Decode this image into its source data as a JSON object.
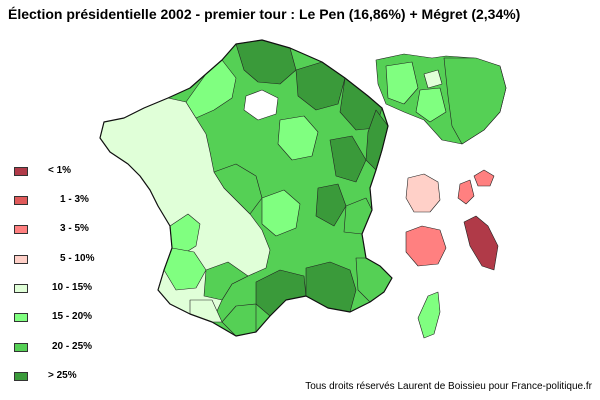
{
  "title": "Élection présidentielle 2002 - premier tour : Le Pen (16,86%) + Mégret (2,34%)",
  "credit": "Tous droits réservés Laurent de Boissieu pour France-politique.fr",
  "legend": [
    {
      "label": "< 1%",
      "color": "#b03a48"
    },
    {
      "label": "1 - 3%",
      "color": "#e05a5a"
    },
    {
      "label": "3 - 5%",
      "color": "#ff8080"
    },
    {
      "label": "5 - 10%",
      "color": "#ffd0c8"
    },
    {
      "label": "10 - 15%",
      "color": "#e0ffd8"
    },
    {
      "label": "15 - 20%",
      "color": "#80ff80"
    },
    {
      "label": "20 - 25%",
      "color": "#55d055"
    },
    {
      "label": "> 25%",
      "color": "#3a9a3a"
    }
  ],
  "colors": {
    "c10": "#e0ffd8",
    "c15": "#80ff80",
    "c20": "#55d055",
    "c25": "#3a9a3a",
    "c5": "#ffd0c8",
    "c3": "#ff8080",
    "c1": "#e05a5a",
    "c0": "#b03a48"
  }
}
